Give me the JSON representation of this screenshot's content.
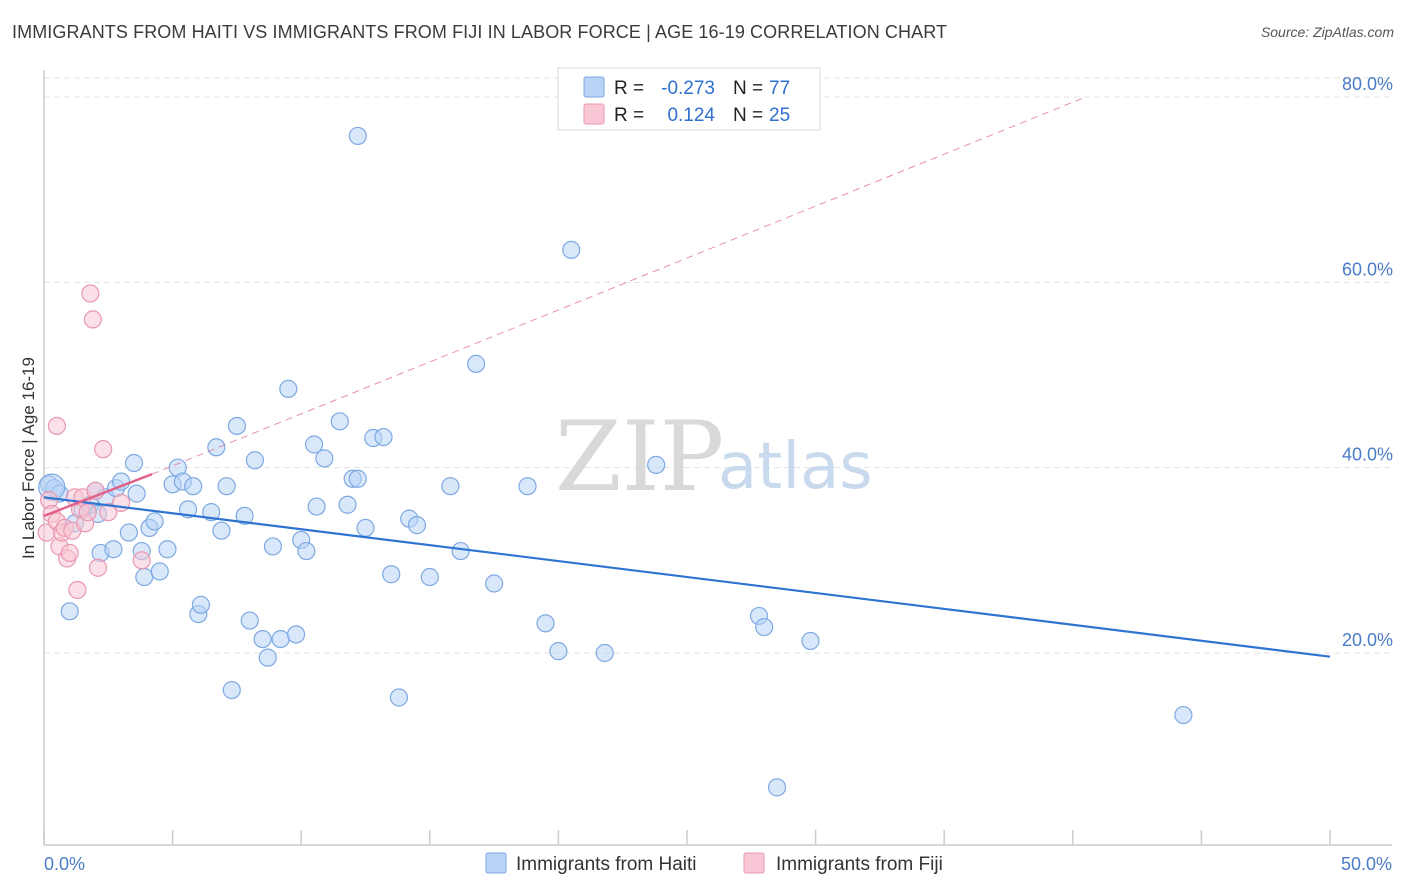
{
  "title": "IMMIGRANTS FROM HAITI VS IMMIGRANTS FROM FIJI IN LABOR FORCE | AGE 16-19 CORRELATION CHART",
  "source": "Source: ZipAtlas.com",
  "watermark": {
    "zip": "ZIP",
    "atlas": "atlas"
  },
  "colors": {
    "haiti_fill": "#b8d3f5",
    "haiti_stroke": "#7ea9e2",
    "haiti_line": "#2f74d0",
    "fiji_fill": "#f8c6d4",
    "fiji_stroke": "#ea98b1",
    "fiji_line": "#e0608a",
    "grid": "#e3e3e3"
  },
  "legend": {
    "rows": [
      {
        "r_label": "R =",
        "r_value": "-0.273",
        "n_label": "N =",
        "n_value": "77"
      },
      {
        "r_label": "R =",
        "r_value": "0.124",
        "n_label": "N =",
        "n_value": "25"
      }
    ]
  },
  "chart_data": {
    "type": "scatter",
    "title": "IMMIGRANTS FROM HAITI VS IMMIGRANTS FROM FIJI IN LABOR FORCE | AGE 16-19 CORRELATION CHART",
    "xlabel": "",
    "ylabel": "In Labor Force | Age 16-19",
    "xlim": [
      0,
      50
    ],
    "ylim": [
      0,
      82
    ],
    "x_tick_labels": [
      "0.0%",
      "50.0%"
    ],
    "y_ticks": [
      20,
      40,
      60,
      80
    ],
    "y_tick_labels": [
      "20.0%",
      "40.0%",
      "60.0%",
      "80.0%"
    ],
    "grid": true,
    "series": [
      {
        "name": "Immigrants from Haiti",
        "r": -0.273,
        "n": 77,
        "trend": {
          "x0": 0,
          "y0": 36.8,
          "x1": 50,
          "y1": 19.6
        },
        "points": [
          [
            0.2,
            38.2
          ],
          [
            0.4,
            37.8
          ],
          [
            0.6,
            37.2
          ],
          [
            1.0,
            24.5
          ],
          [
            1.2,
            34.0
          ],
          [
            1.5,
            35.5
          ],
          [
            1.8,
            36.0
          ],
          [
            2.0,
            37.5
          ],
          [
            2.1,
            35.0
          ],
          [
            2.2,
            30.8
          ],
          [
            2.4,
            36.8
          ],
          [
            2.7,
            31.2
          ],
          [
            2.8,
            37.8
          ],
          [
            3.0,
            38.5
          ],
          [
            3.3,
            33.0
          ],
          [
            3.5,
            40.5
          ],
          [
            3.6,
            37.2
          ],
          [
            3.8,
            31.0
          ],
          [
            3.9,
            28.2
          ],
          [
            4.1,
            33.5
          ],
          [
            4.3,
            34.2
          ],
          [
            4.5,
            28.8
          ],
          [
            4.8,
            31.2
          ],
          [
            5.0,
            38.2
          ],
          [
            5.2,
            40.0
          ],
          [
            5.4,
            38.5
          ],
          [
            5.6,
            35.5
          ],
          [
            5.8,
            38.0
          ],
          [
            6.0,
            24.2
          ],
          [
            6.1,
            25.2
          ],
          [
            6.5,
            35.2
          ],
          [
            6.7,
            42.2
          ],
          [
            6.9,
            33.2
          ],
          [
            7.1,
            38.0
          ],
          [
            7.3,
            16.0
          ],
          [
            7.5,
            44.5
          ],
          [
            7.8,
            34.8
          ],
          [
            8.0,
            23.5
          ],
          [
            8.2,
            40.8
          ],
          [
            8.5,
            21.5
          ],
          [
            8.7,
            19.5
          ],
          [
            8.9,
            31.5
          ],
          [
            9.2,
            21.5
          ],
          [
            9.5,
            48.5
          ],
          [
            9.8,
            22.0
          ],
          [
            10.0,
            32.2
          ],
          [
            10.2,
            31.0
          ],
          [
            10.5,
            42.5
          ],
          [
            10.6,
            35.8
          ],
          [
            10.9,
            41.0
          ],
          [
            11.5,
            45.0
          ],
          [
            11.8,
            36.0
          ],
          [
            12.0,
            38.8
          ],
          [
            12.2,
            38.8
          ],
          [
            12.5,
            33.5
          ],
          [
            12.8,
            43.2
          ],
          [
            13.2,
            43.3
          ],
          [
            13.5,
            28.5
          ],
          [
            13.8,
            15.2
          ],
          [
            14.2,
            34.5
          ],
          [
            14.5,
            33.8
          ],
          [
            15.0,
            28.2
          ],
          [
            15.8,
            38.0
          ],
          [
            16.2,
            31.0
          ],
          [
            16.8,
            51.2
          ],
          [
            17.5,
            27.5
          ],
          [
            18.8,
            38.0
          ],
          [
            19.5,
            23.2
          ],
          [
            20.0,
            20.2
          ],
          [
            20.5,
            63.5
          ],
          [
            21.8,
            20.0
          ],
          [
            23.8,
            40.3
          ],
          [
            27.8,
            24.0
          ],
          [
            28.0,
            22.8
          ],
          [
            28.5,
            5.5
          ],
          [
            29.8,
            21.3
          ],
          [
            44.3,
            13.3
          ]
        ],
        "outlier": [
          12.2,
          75.8
        ]
      },
      {
        "name": "Immigrants from Fiji",
        "r": 0.124,
        "n": 25,
        "trend": {
          "x0": 0,
          "y0": 34.8,
          "x1": 4.2,
          "y1": 39.3,
          "dash_x1": 40.5,
          "dash_y1": 80.0
        },
        "points": [
          [
            0.1,
            33.0
          ],
          [
            0.2,
            36.5
          ],
          [
            0.3,
            35.0
          ],
          [
            0.5,
            34.2
          ],
          [
            0.5,
            44.5
          ],
          [
            0.6,
            31.5
          ],
          [
            0.7,
            33.0
          ],
          [
            0.8,
            33.5
          ],
          [
            0.9,
            30.2
          ],
          [
            1.0,
            30.8
          ],
          [
            1.1,
            33.2
          ],
          [
            1.2,
            36.8
          ],
          [
            1.3,
            26.8
          ],
          [
            1.4,
            35.5
          ],
          [
            1.5,
            36.8
          ],
          [
            1.6,
            34.0
          ],
          [
            1.7,
            35.2
          ],
          [
            1.8,
            58.8
          ],
          [
            1.9,
            56.0
          ],
          [
            2.0,
            37.5
          ],
          [
            2.1,
            29.2
          ],
          [
            2.3,
            42.0
          ],
          [
            2.5,
            35.2
          ],
          [
            3.0,
            36.2
          ],
          [
            3.8,
            30.0
          ]
        ]
      }
    ]
  },
  "bottom_legend": [
    {
      "label": "Immigrants from Haiti"
    },
    {
      "label": "Immigrants from Fiji"
    }
  ]
}
